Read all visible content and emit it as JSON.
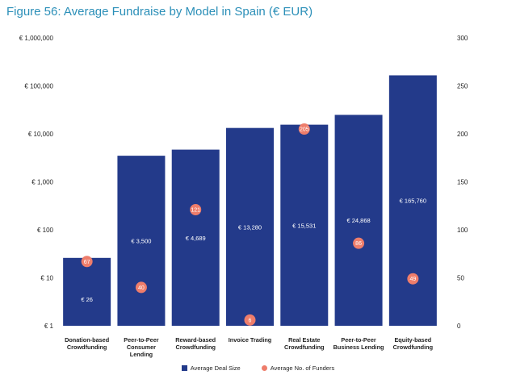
{
  "title": "Figure 56: Average Fundraise by Model in Spain (€ EUR)",
  "colors": {
    "bar": "#233a8a",
    "dot": "#ee7d6b"
  },
  "chart_data": {
    "type": "bar",
    "title": "Figure 56: Average Fundraise by Model in Spain (€ EUR)",
    "categories": [
      [
        "Donation-based",
        "Crowdfunding"
      ],
      [
        "Peer-to-Peer",
        "Consumer",
        "Lending"
      ],
      [
        "Reward-based",
        "Crowdfunding"
      ],
      [
        "Invoice Trading"
      ],
      [
        "Real Estate",
        "Crowdfunding"
      ],
      [
        "Peer-to-Peer",
        "Business Lending"
      ],
      [
        "Equity-based",
        "Crowdfunding"
      ]
    ],
    "y_left": {
      "scale": "log",
      "ylim": [
        1,
        1000000
      ],
      "ticks": [
        "€ 1,000,000",
        "€ 100,000",
        "€ 10,000",
        "€ 1,000",
        "€ 100",
        "€ 10",
        "€ 1"
      ]
    },
    "y_right": {
      "scale": "linear",
      "ylim": [
        0,
        300
      ],
      "ticks": [
        "300",
        "250",
        "200",
        "150",
        "100",
        "50",
        "0"
      ]
    },
    "series": [
      {
        "name": "Average Deal Size",
        "type": "bar",
        "axis": "left",
        "values": [
          26,
          3500,
          4689,
          13280,
          15531,
          24868,
          165760
        ],
        "labels": [
          "€ 26",
          "€ 3,500",
          "€ 4,689",
          "€ 13,280",
          "€ 15,531",
          "€ 24,868",
          "€ 165,760"
        ]
      },
      {
        "name": "Average No. of Funders",
        "type": "scatter",
        "axis": "right",
        "values": [
          67,
          40,
          121,
          6,
          205,
          86,
          49
        ],
        "labels": [
          "67",
          "40",
          "121",
          "6",
          "205",
          "86",
          "49"
        ]
      }
    ],
    "legend": "bottom"
  }
}
